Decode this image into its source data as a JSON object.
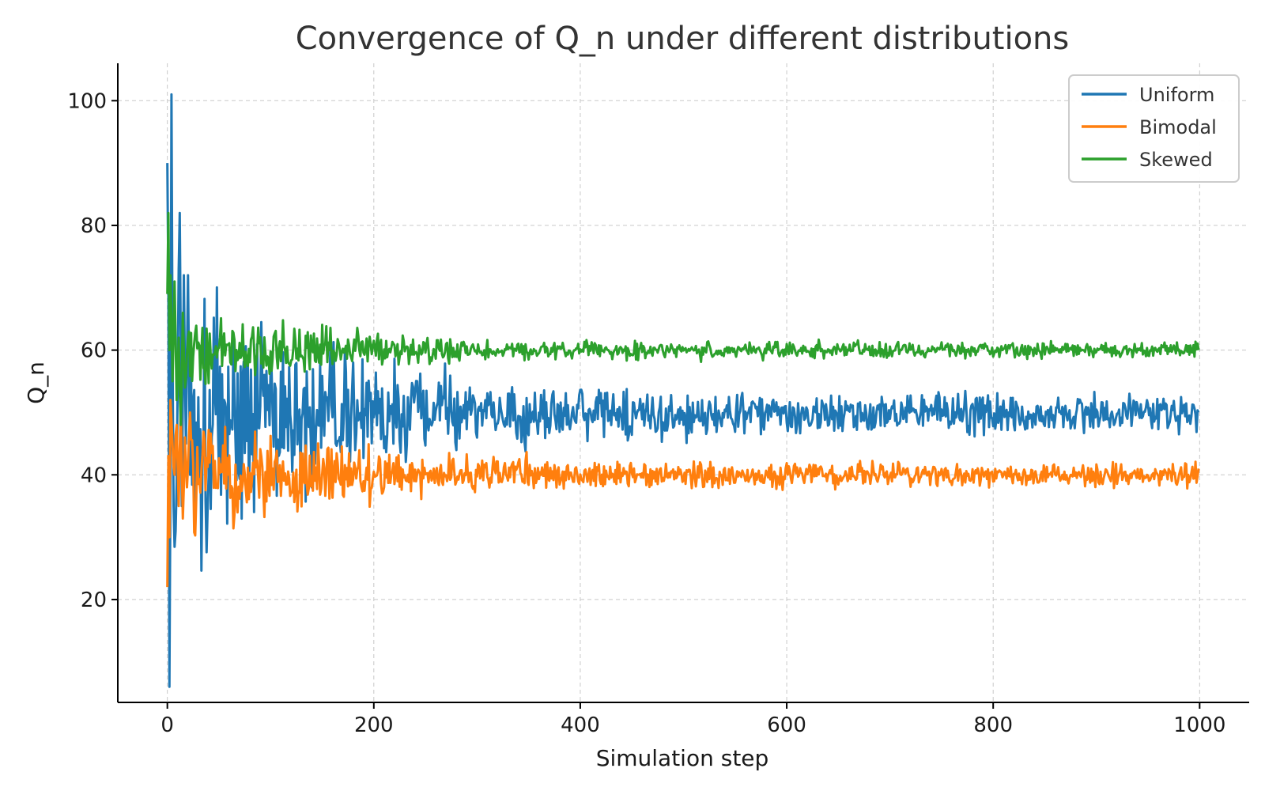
{
  "chart_data": {
    "type": "line",
    "title": "Convergence of Q_n under different distributions",
    "xlabel": "Simulation step",
    "ylabel": "Q_n",
    "xlim": [
      -48,
      1048
    ],
    "ylim": [
      3.5,
      106
    ],
    "xticks": [
      0,
      200,
      400,
      600,
      800,
      1000
    ],
    "yticks": [
      20,
      40,
      60,
      80,
      100
    ],
    "grid": true,
    "legend_position": "top-right",
    "n_points": 1000,
    "series": [
      {
        "name": "Uniform",
        "color": "#1f77b4",
        "center": 50,
        "initial_points": [
          [
            0,
            90
          ],
          [
            1,
            70
          ],
          [
            2,
            6
          ],
          [
            3,
            40
          ],
          [
            4,
            101
          ],
          [
            5,
            60
          ],
          [
            6,
            35
          ],
          [
            8,
            31
          ],
          [
            10,
            55
          ],
          [
            12,
            82
          ],
          [
            14,
            35
          ],
          [
            16,
            72
          ],
          [
            18,
            45
          ],
          [
            20,
            72
          ],
          [
            22,
            40
          ]
        ],
        "noise_amplitude_start": 24,
        "noise_amplitude_end": 2.8,
        "noise_decay_steps": 120,
        "final_value": 50
      },
      {
        "name": "Bimodal",
        "color": "#ff7f0e",
        "center": 40,
        "initial_points": [
          [
            0,
            22
          ],
          [
            1,
            43
          ],
          [
            2,
            30
          ],
          [
            3,
            52
          ],
          [
            5,
            45
          ],
          [
            7,
            40
          ],
          [
            9,
            48
          ],
          [
            11,
            35
          ],
          [
            13,
            51
          ],
          [
            15,
            33
          ],
          [
            17,
            46
          ],
          [
            19,
            38
          ],
          [
            22,
            50
          ]
        ],
        "noise_amplitude_start": 9,
        "noise_amplitude_end": 1.6,
        "noise_decay_steps": 150,
        "final_value": 41
      },
      {
        "name": "Skewed",
        "color": "#2ca02c",
        "center": 60,
        "initial_points": [
          [
            0,
            69
          ],
          [
            1,
            82
          ],
          [
            2,
            60
          ],
          [
            3,
            72
          ],
          [
            5,
            55
          ],
          [
            7,
            71
          ],
          [
            9,
            52
          ],
          [
            11,
            62
          ],
          [
            13,
            48
          ],
          [
            15,
            66
          ],
          [
            17,
            54
          ],
          [
            20,
            62
          ]
        ],
        "noise_amplitude_start": 6.5,
        "noise_amplitude_end": 1.1,
        "noise_decay_steps": 130,
        "final_value": 60
      }
    ]
  }
}
